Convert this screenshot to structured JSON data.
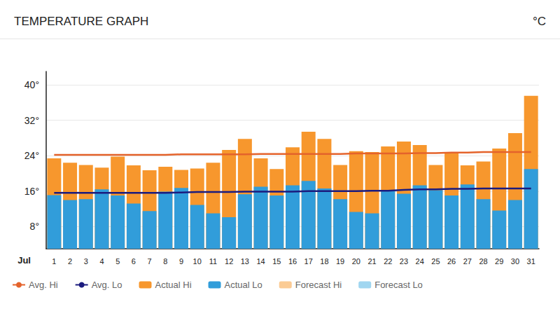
{
  "chart_data": {
    "type": "bar",
    "title": "TEMPERATURE GRAPH",
    "ylabel": "°C",
    "xlabel": "Jul",
    "categories": [
      "1",
      "2",
      "3",
      "4",
      "5",
      "6",
      "7",
      "8",
      "9",
      "10",
      "11",
      "12",
      "13",
      "14",
      "15",
      "16",
      "17",
      "18",
      "19",
      "20",
      "21",
      "22",
      "23",
      "24",
      "25",
      "26",
      "27",
      "28",
      "29",
      "30",
      "31"
    ],
    "series": [
      {
        "name": "Avg. Hi",
        "type": "line",
        "color": "#e4632b",
        "values": [
          24.2,
          24.2,
          24.2,
          24.2,
          24.2,
          24.2,
          24.2,
          24.2,
          24.3,
          24.3,
          24.3,
          24.3,
          24.3,
          24.4,
          24.4,
          24.4,
          24.4,
          24.4,
          24.4,
          24.5,
          24.5,
          24.5,
          24.5,
          24.6,
          24.6,
          24.7,
          24.7,
          24.8,
          24.8,
          24.8,
          24.8
        ]
      },
      {
        "name": "Avg. Lo",
        "type": "line",
        "color": "#1b1b7e",
        "values": [
          15.6,
          15.6,
          15.6,
          15.6,
          15.6,
          15.6,
          15.6,
          15.6,
          15.7,
          15.8,
          15.8,
          15.8,
          15.9,
          15.9,
          15.9,
          15.9,
          16.0,
          16.0,
          16.0,
          16.0,
          16.1,
          16.1,
          16.3,
          16.4,
          16.4,
          16.5,
          16.5,
          16.6,
          16.6,
          16.6,
          16.6
        ]
      },
      {
        "name": "Actual Hi",
        "type": "bar",
        "color": "#f7972d",
        "values": [
          23.4,
          22.4,
          21.9,
          21.3,
          23.8,
          21.8,
          20.7,
          21.5,
          20.8,
          21.1,
          22.4,
          25.3,
          27.8,
          23.4,
          21.0,
          25.9,
          29.4,
          27.8,
          21.9,
          25.0,
          24.8,
          26.1,
          27.2,
          26.4,
          21.9,
          24.5,
          21.8,
          22.7,
          25.6,
          29.1,
          37.5
        ]
      },
      {
        "name": "Actual Lo",
        "type": "bar",
        "color": "#319dda",
        "values": [
          15.1,
          14.0,
          14.2,
          16.4,
          15.0,
          13.2,
          11.5,
          15.9,
          16.7,
          12.9,
          11.0,
          10.1,
          15.3,
          17.0,
          15.0,
          17.3,
          18.3,
          16.6,
          14.2,
          11.3,
          11.0,
          16.1,
          15.4,
          17.3,
          16.2,
          15.0,
          17.5,
          14.2,
          11.6,
          14.0,
          21.0
        ]
      },
      {
        "name": "Forecast Hi",
        "type": "bar",
        "color": "#fbcb94",
        "values": [
          null,
          null,
          null,
          null,
          null,
          null,
          null,
          null,
          null,
          null,
          null,
          null,
          null,
          null,
          null,
          null,
          null,
          null,
          null,
          null,
          null,
          null,
          null,
          null,
          null,
          null,
          null,
          null,
          null,
          null,
          null
        ]
      },
      {
        "name": "Forecast Lo",
        "type": "bar",
        "color": "#a0d6f0",
        "values": [
          null,
          null,
          null,
          null,
          null,
          null,
          null,
          null,
          null,
          null,
          null,
          null,
          null,
          null,
          null,
          null,
          null,
          null,
          null,
          null,
          null,
          null,
          null,
          null,
          null,
          null,
          null,
          null,
          null,
          null,
          null
        ]
      }
    ],
    "ylim": [
      3,
      43
    ],
    "yticks": [
      {
        "value": 8,
        "label": "8°"
      },
      {
        "value": 16,
        "label": "16°"
      },
      {
        "value": 24,
        "label": "24°"
      },
      {
        "value": 32,
        "label": "32°"
      },
      {
        "value": 40,
        "label": "40°"
      }
    ],
    "grid": true,
    "legend": "bottom"
  }
}
